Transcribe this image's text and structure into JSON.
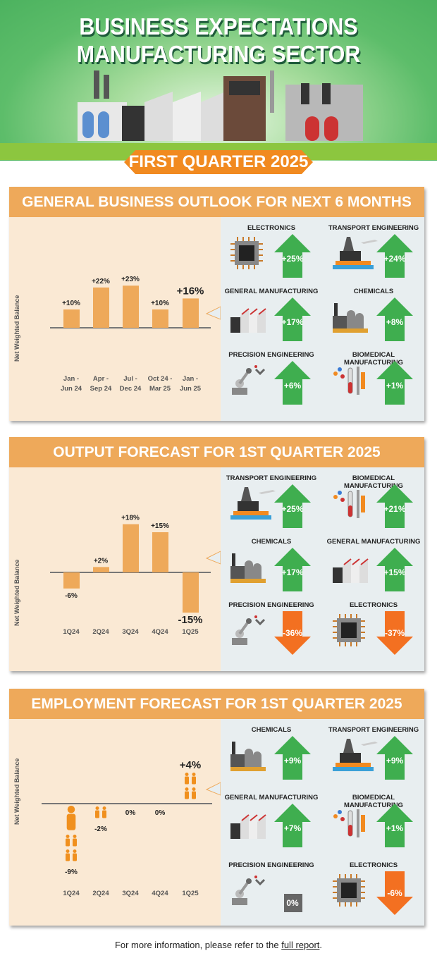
{
  "header": {
    "title_line1": "BUSINESS EXPECTATIONS",
    "title_line2": "MANUFACTURING SECTOR",
    "quarter": "FIRST QUARTER 2025"
  },
  "colors": {
    "bar": "#eea95a",
    "up": "#3fae4f",
    "down": "#f37021",
    "neutral": "#666666",
    "panel_bg": "#fae9d4",
    "header_bar": "#eea95a",
    "sector_bg": "#e8eef0"
  },
  "chart_data": [
    {
      "type": "bar",
      "title": "GENERAL BUSINESS OUTLOOK FOR NEXT 6 MONTHS",
      "ylabel": "Net Weighted Balance",
      "categories": [
        "Jan -\nJun 24",
        "Apr -\nSep 24",
        "Jul -\nDec 24",
        "Oct 24 -\nMar 25",
        "Jan -\nJun 25"
      ],
      "values": [
        10,
        22,
        23,
        10,
        16
      ],
      "labels": [
        "+10%",
        "+22%",
        "+23%",
        "+10%",
        "+16%"
      ],
      "unit": "%"
    },
    {
      "type": "bar",
      "title": "OUTPUT FORECAST FOR 1ST QUARTER 2025",
      "ylabel": "Net Weighted Balance",
      "categories": [
        "1Q24",
        "2Q24",
        "3Q24",
        "4Q24",
        "1Q25"
      ],
      "values": [
        -6,
        2,
        18,
        15,
        -15
      ],
      "labels": [
        "-6%",
        "+2%",
        "+18%",
        "+15%",
        "-15%"
      ],
      "unit": "%"
    },
    {
      "type": "bar",
      "title": "EMPLOYMENT FORECAST FOR 1ST QUARTER 2025",
      "ylabel": "Net Weighted Balance",
      "categories": [
        "1Q24",
        "2Q24",
        "3Q24",
        "4Q24",
        "1Q25"
      ],
      "values": [
        -9,
        -2,
        0,
        0,
        4
      ],
      "labels": [
        "-9%",
        "-2%",
        "0%",
        "0%",
        "+4%"
      ],
      "unit": "%",
      "marker": "person-icon"
    }
  ],
  "sectors": [
    [
      {
        "name": "ELECTRONICS",
        "value": "+25%",
        "dir": "up",
        "icon": "chip"
      },
      {
        "name": "TRANSPORT ENGINEERING",
        "value": "+24%",
        "dir": "up",
        "icon": "rig"
      },
      {
        "name": "GENERAL MANUFACTURING",
        "value": "+17%",
        "dir": "up",
        "icon": "factory"
      },
      {
        "name": "CHEMICALS",
        "value": "+8%",
        "dir": "up",
        "icon": "chemicals"
      },
      {
        "name": "PRECISION ENGINEERING",
        "value": "+6%",
        "dir": "up",
        "icon": "robot"
      },
      {
        "name": "BIOMEDICAL MANUFACTURING",
        "value": "+1%",
        "dir": "up",
        "icon": "biomed"
      }
    ],
    [
      {
        "name": "TRANSPORT ENGINEERING",
        "value": "+25%",
        "dir": "up",
        "icon": "rig"
      },
      {
        "name": "BIOMEDICAL MANUFACTURING",
        "value": "+21%",
        "dir": "up",
        "icon": "biomed"
      },
      {
        "name": "CHEMICALS",
        "value": "+17%",
        "dir": "up",
        "icon": "chemicals"
      },
      {
        "name": "GENERAL MANUFACTURING",
        "value": "+15%",
        "dir": "up",
        "icon": "factory"
      },
      {
        "name": "PRECISION ENGINEERING",
        "value": "-36%",
        "dir": "down",
        "icon": "robot"
      },
      {
        "name": "ELECTRONICS",
        "value": "-37%",
        "dir": "down",
        "icon": "chip"
      }
    ],
    [
      {
        "name": "CHEMICALS",
        "value": "+9%",
        "dir": "up",
        "icon": "chemicals"
      },
      {
        "name": "TRANSPORT ENGINEERING",
        "value": "+9%",
        "dir": "up",
        "icon": "rig"
      },
      {
        "name": "GENERAL MANUFACTURING",
        "value": "+7%",
        "dir": "up",
        "icon": "factory"
      },
      {
        "name": "BIOMEDICAL MANUFACTURING",
        "value": "+1%",
        "dir": "up",
        "icon": "biomed"
      },
      {
        "name": "PRECISION ENGINEERING",
        "value": "0%",
        "dir": "neutral",
        "icon": "robot"
      },
      {
        "name": "ELECTRONICS",
        "value": "-6%",
        "dir": "down",
        "icon": "chip"
      }
    ]
  ],
  "footer": {
    "text": "For more information, please refer to the ",
    "link": "full report",
    "end": "."
  }
}
